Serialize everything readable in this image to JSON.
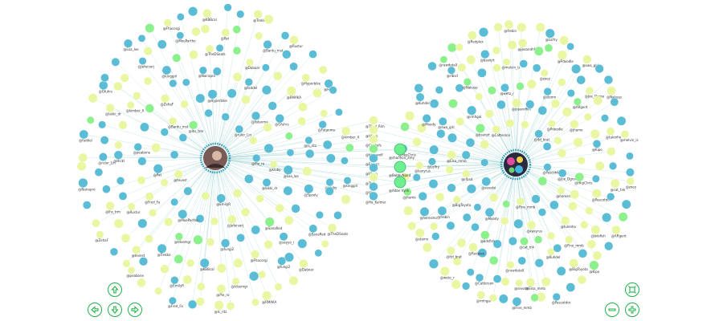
{
  "colors": {
    "blue_node": "#5bbcd6",
    "yellow_node": "#e9f7a2",
    "green_node": "#8cf08c",
    "green_bright": "#6ef090",
    "edge": "#6fbcbc",
    "control": "#22b04b"
  },
  "left_cluster": {
    "hub": {
      "name": "hub-left",
      "photo": "portrait"
    },
    "labels": [
      "@Pie_ro",
      "@EmilyR",
      "@tevest",
      "@lhs_trm",
      "@ruler_Lin",
      "@lakki_dr",
      "@Jefersorj",
      "@MoePartho",
      "@Pat",
      "@Bardu_mst",
      "@Hyperbike",
      "@Fatanma",
      "@kluby",
      "@SanaRed",
      "@fungi2",
      "@tdsemgr",
      "@Fred_Fa",
      "@peabone",
      "@ZehaF",
      "@Nairapro",
      "@faddel",
      "@Gfuhrs",
      "@Loa_loe",
      "@Fhacorgi",
      "@KBBcal",
      "@Trekko",
      "@Rustur",
      "@Hickl",
      "@kimber_A",
      "@kinggirl",
      "@TheDSeats",
      "@Daboar",
      "@RMAKA",
      "@ls_ritz",
      "@Spooly",
      "@sayyo_i"
    ]
  },
  "right_cluster": {
    "hub": {
      "name": "hub-right",
      "photo": "colorful"
    },
    "labels": [
      "@Pascotdor",
      "@Fine_mmb",
      "@sevatsi",
      "@Catterson",
      "@ltd_brat",
      "@heresmic",
      "@kaxyrus",
      "@Moody",
      "@rlbsd",
      "@bsanjrt",
      "@joeandhfff",
      "@Pdoodle",
      "@Joe_Dgroe",
      "@tulenho",
      "@cat_tnk",
      "@bdsfish",
      "@BigToyota",
      "@Elsa_mmb",
      "@rmhgal",
      "@weto_r",
      "@stemn",
      "@jhamo",
      "@HkpChris",
      "@Kuhdel",
      "@rawdataX",
      "@Redplex",
      "@frebin",
      "@Lolfry",
      "@swa_girl",
      "@Nakusp",
      "@melvin_is",
      "@zoey",
      "@ARgent",
      "@Kipo"
    ]
  },
  "bridge": {
    "nodes": [
      {
        "label": "@Tbed_Rim",
        "color": "yellow"
      },
      {
        "label": "@Vfunk",
        "color": "yellow"
      },
      {
        "label": "@Cookefs",
        "color": "yellow"
      },
      {
        "label": "@bkp_wolf",
        "color": "green"
      },
      {
        "label": "@Elrnerr",
        "color": "blue"
      },
      {
        "label": "@Ffcan",
        "color": "blue"
      },
      {
        "label": "@Tad",
        "color": "yellow"
      },
      {
        "label": "@Vig",
        "color": "blue"
      },
      {
        "label": "@Ha_Kalmer",
        "color": "blue"
      }
    ],
    "center": [
      {
        "label": "@shannon_arey",
        "color": "green"
      },
      {
        "label": "@BobbyNjord",
        "color": "green"
      },
      {
        "label": "@Alton Vyck",
        "color": "green"
      }
    ]
  },
  "controls": {
    "pan_up": "up-arrow-icon",
    "pan_left": "left-arrow-icon",
    "pan_down": "down-arrow-icon",
    "pan_right": "right-arrow-icon",
    "fit": "fit-screen-icon",
    "zoom_out": "minus-icon",
    "zoom_in": "plus-icon"
  }
}
